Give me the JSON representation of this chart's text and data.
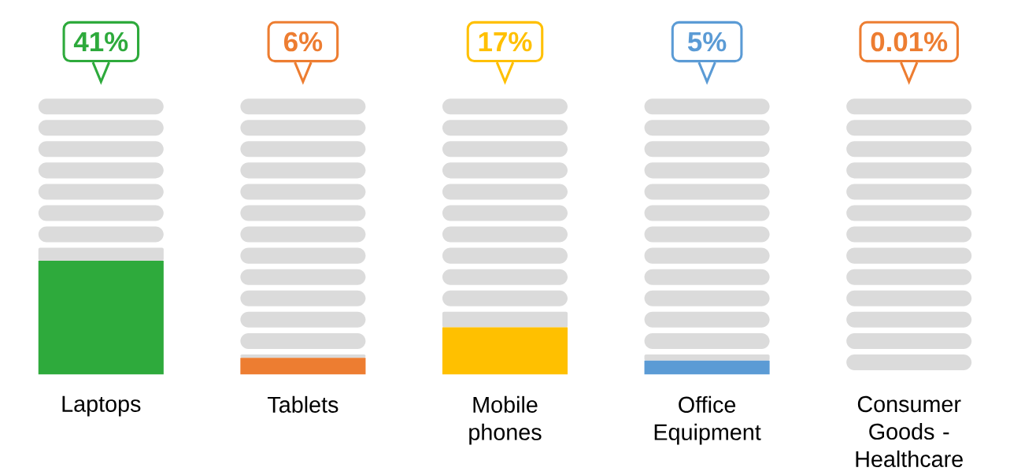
{
  "chart_data": {
    "type": "bar",
    "categories": [
      "Laptops",
      "Tablets",
      "Mobile phones",
      "Office Equipment",
      "Consumer Goods - Healthcare"
    ],
    "values": [
      41,
      6,
      17,
      5,
      0.01
    ],
    "colors": [
      "#2eaa3c",
      "#ed7d31",
      "#ffc000",
      "#5b9bd5",
      "#ed7d31"
    ],
    "value_labels": [
      "41%",
      "6%",
      "17%",
      "5%",
      "0.01%"
    ],
    "tick_labels": "x"
  }
}
